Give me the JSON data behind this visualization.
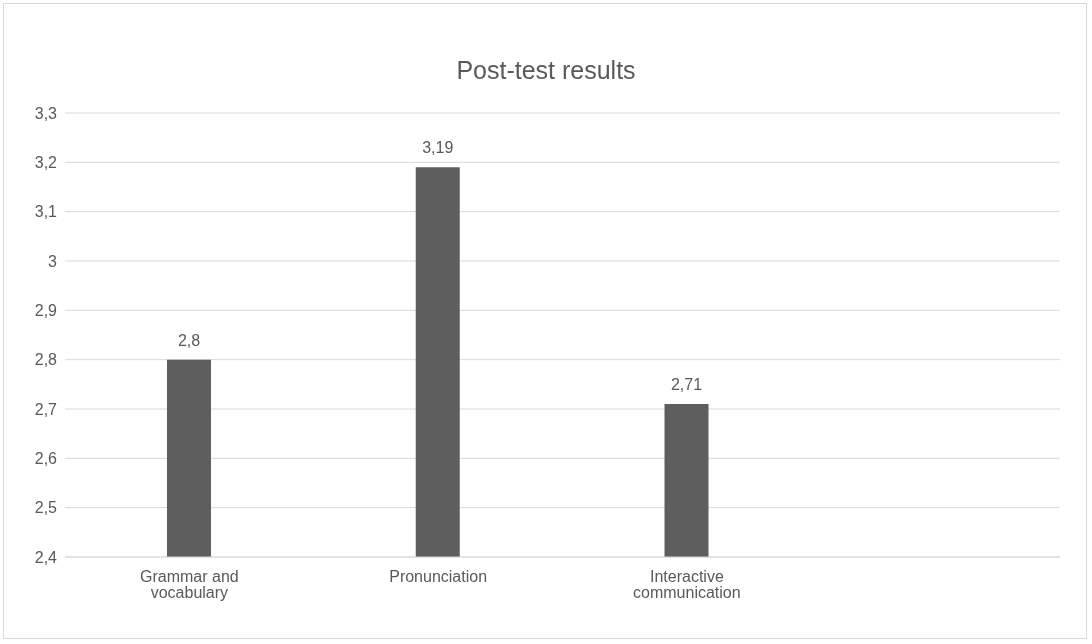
{
  "chart_data": {
    "type": "bar",
    "title": "Post-test results",
    "categories": [
      "Grammar and vocabulary",
      "Pronunciation",
      "Interactive communication",
      null
    ],
    "values": [
      2.8,
      3.19,
      2.71,
      null
    ],
    "color": "#5e5e5e",
    "value_labels": [
      "2,8",
      "3,19",
      "2,71",
      null
    ],
    "ylim": [
      2.4,
      3.3
    ],
    "yticks": [
      {
        "value": 2.4,
        "label": "2,4"
      },
      {
        "value": 2.5,
        "label": "2,5"
      },
      {
        "value": 2.6,
        "label": "2,6"
      },
      {
        "value": 2.7,
        "label": "2,7"
      },
      {
        "value": 2.8,
        "label": "2,8"
      },
      {
        "value": 2.9,
        "label": "2,9"
      },
      {
        "value": 3,
        "label": "3"
      },
      {
        "value": 3.1,
        "label": "3,1"
      },
      {
        "value": 3.2,
        "label": "3,2"
      },
      {
        "value": 3.3,
        "label": "3,3"
      }
    ],
    "grid": "y",
    "legend": false
  }
}
